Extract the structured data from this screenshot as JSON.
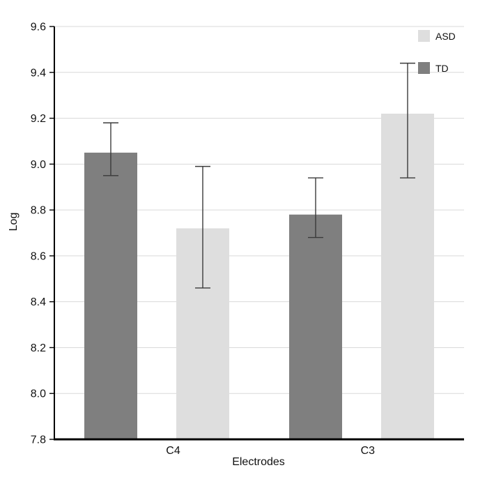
{
  "chart_data": {
    "type": "bar",
    "title": "",
    "xlabel": "Electrodes",
    "ylabel": "Log",
    "ylim": [
      7.8,
      9.6
    ],
    "ytick_step": 0.2,
    "ytick_labels": [
      "7.8",
      "8.0",
      "8.2",
      "8.4",
      "8.6",
      "8.8",
      "9.0",
      "9.2",
      "9.4",
      "9.6"
    ],
    "categories": [
      "C4",
      "C3"
    ],
    "series": [
      {
        "name": "TD",
        "color": "#7f7f7f",
        "values": [
          9.05,
          8.78
        ],
        "error_minus": [
          0.1,
          0.1
        ],
        "error_plus": [
          0.13,
          0.16
        ]
      },
      {
        "name": "ASD",
        "color": "#dedede",
        "values": [
          8.72,
          9.22
        ],
        "error_minus": [
          0.26,
          0.28
        ],
        "error_plus": [
          0.27,
          0.22
        ]
      }
    ],
    "legend": {
      "position": "top-right",
      "entries": [
        {
          "label": "ASD",
          "color": "#dedede"
        },
        {
          "label": "TD",
          "color": "#7f7f7f"
        }
      ]
    },
    "grid": true,
    "grid_color": "#d9d9d9",
    "axis_color": "#000000",
    "error_bar_color": "#3a3a3a"
  }
}
